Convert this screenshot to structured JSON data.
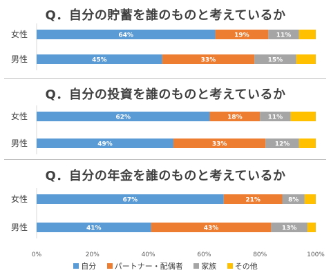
{
  "chart_data": [
    {
      "type": "bar",
      "title": "Q．自分の貯蓄を誰のものと考えているか",
      "categories": [
        "女性",
        "男性"
      ],
      "series": [
        {
          "name": "自分",
          "values": [
            64,
            45
          ]
        },
        {
          "name": "パートナー・配偶者",
          "values": [
            19,
            33
          ]
        },
        {
          "name": "家族",
          "values": [
            11,
            15
          ]
        },
        {
          "name": "その他",
          "values": [
            6,
            7
          ]
        }
      ],
      "xlim": [
        0,
        100
      ]
    },
    {
      "type": "bar",
      "title": "Q．自分の投資を誰のものと考えているか",
      "categories": [
        "女性",
        "男性"
      ],
      "series": [
        {
          "name": "自分",
          "values": [
            62,
            49
          ]
        },
        {
          "name": "パートナー・配偶者",
          "values": [
            18,
            33
          ]
        },
        {
          "name": "家族",
          "values": [
            11,
            12
          ]
        },
        {
          "name": "その他",
          "values": [
            9,
            6
          ]
        }
      ],
      "xlim": [
        0,
        100
      ]
    },
    {
      "type": "bar",
      "title": "Q．自分の年金を誰のものと考えているか",
      "categories": [
        "女性",
        "男性"
      ],
      "series": [
        {
          "name": "自分",
          "values": [
            67,
            41
          ]
        },
        {
          "name": "パートナー・配偶者",
          "values": [
            21,
            43
          ]
        },
        {
          "name": "家族",
          "values": [
            8,
            13
          ]
        },
        {
          "name": "その他",
          "values": [
            4,
            3
          ]
        }
      ],
      "xlim": [
        0,
        100
      ]
    }
  ],
  "x_ticks": [
    "0%",
    "20%",
    "40%",
    "60%",
    "80%",
    "100%"
  ],
  "colors": [
    "#5b9bd5",
    "#ed7d31",
    "#a5a5a5",
    "#ffc000"
  ],
  "legend": [
    "自分",
    "パートナー・配偶者",
    "家族",
    "その他"
  ]
}
